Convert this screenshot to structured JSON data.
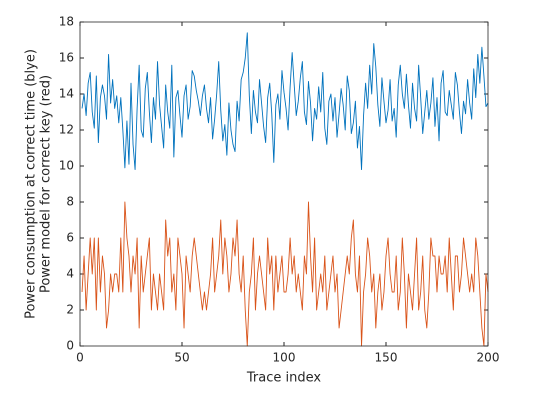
{
  "chart_data": {
    "type": "line",
    "xlabel": "Trace index",
    "ylabel": [
      "Power consumption at correct time (blye)",
      "Power model for correct key (red)"
    ],
    "xlim": [
      0,
      200
    ],
    "xticks": [
      0,
      50,
      100,
      150,
      200
    ],
    "ylim": [
      0,
      18
    ],
    "yticks": [
      0,
      2,
      4,
      6,
      8,
      10,
      12,
      14,
      16,
      18
    ],
    "x": [
      1,
      2,
      3,
      4,
      5,
      6,
      7,
      8,
      9,
      10,
      11,
      12,
      13,
      14,
      15,
      16,
      17,
      18,
      19,
      20,
      21,
      22,
      23,
      24,
      25,
      26,
      27,
      28,
      29,
      30,
      31,
      32,
      33,
      34,
      35,
      36,
      37,
      38,
      39,
      40,
      41,
      42,
      43,
      44,
      45,
      46,
      47,
      48,
      49,
      50,
      51,
      52,
      53,
      54,
      55,
      56,
      57,
      58,
      59,
      60,
      61,
      62,
      63,
      64,
      65,
      66,
      67,
      68,
      69,
      70,
      71,
      72,
      73,
      74,
      75,
      76,
      77,
      78,
      79,
      80,
      81,
      82,
      83,
      84,
      85,
      86,
      87,
      88,
      89,
      90,
      91,
      92,
      93,
      94,
      95,
      96,
      97,
      98,
      99,
      100,
      101,
      102,
      103,
      104,
      105,
      106,
      107,
      108,
      109,
      110,
      111,
      112,
      113,
      114,
      115,
      116,
      117,
      118,
      119,
      120,
      121,
      122,
      123,
      124,
      125,
      126,
      127,
      128,
      129,
      130,
      131,
      132,
      133,
      134,
      135,
      136,
      137,
      138,
      139,
      140,
      141,
      142,
      143,
      144,
      145,
      146,
      147,
      148,
      149,
      150,
      151,
      152,
      153,
      154,
      155,
      156,
      157,
      158,
      159,
      160,
      161,
      162,
      163,
      164,
      165,
      166,
      167,
      168,
      169,
      170,
      171,
      172,
      173,
      174,
      175,
      176,
      177,
      178,
      179,
      180,
      181,
      182,
      183,
      184,
      185,
      186,
      187,
      188,
      189,
      190,
      191,
      192,
      193,
      194,
      195,
      196,
      197,
      198,
      199,
      200
    ],
    "series": [
      {
        "color": "#0072bd",
        "values": [
          13.2,
          14.0,
          12.8,
          14.6,
          15.2,
          13.0,
          12.1,
          15.0,
          11.3,
          13.8,
          14.5,
          13.9,
          12.6,
          16.2,
          13.5,
          14.8,
          13.2,
          13.9,
          12.4,
          13.8,
          12.0,
          9.9,
          12.5,
          10.1,
          14.6,
          11.2,
          9.8,
          13.2,
          15.6,
          12.0,
          11.6,
          14.3,
          15.2,
          13.0,
          11.3,
          13.8,
          12.6,
          15.8,
          13.4,
          12.2,
          11.0,
          14.5,
          13.0,
          12.1,
          15.6,
          10.5,
          13.8,
          14.2,
          12.8,
          11.6,
          13.9,
          14.5,
          12.6,
          13.3,
          15.3,
          15.0,
          14.2,
          13.6,
          12.8,
          13.9,
          14.5,
          13.2,
          12.4,
          13.8,
          11.5,
          12.6,
          14.0,
          15.8,
          13.1,
          11.4,
          12.3,
          10.6,
          13.5,
          12.0,
          11.2,
          10.8,
          13.6,
          12.5,
          14.8,
          15.2,
          16.0,
          17.4,
          13.9,
          11.8,
          14.2,
          13.0,
          12.4,
          14.8,
          13.5,
          12.2,
          11.3,
          13.8,
          14.6,
          12.9,
          10.2,
          13.4,
          14.0,
          12.6,
          15.3,
          14.1,
          13.2,
          12.0,
          14.4,
          16.3,
          14.5,
          12.8,
          13.6,
          14.9,
          15.8,
          13.0,
          12.3,
          14.7,
          13.5,
          11.4,
          13.2,
          12.6,
          14.4,
          13.0,
          15.2,
          12.1,
          11.2,
          13.6,
          14.0,
          12.5,
          13.8,
          11.6,
          12.9,
          14.3,
          13.4,
          12.0,
          15.0,
          14.2,
          11.8,
          12.4,
          13.6,
          11.0,
          12.2,
          9.8,
          12.8,
          14.6,
          13.2,
          15.6,
          14.0,
          16.8,
          15.5,
          13.4,
          12.2,
          14.9,
          13.6,
          12.4,
          13.1,
          14.8,
          12.5,
          13.2,
          11.6,
          14.5,
          15.6,
          14.0,
          13.2,
          15.1,
          13.4,
          12.1,
          14.6,
          13.2,
          12.5,
          15.6,
          13.8,
          11.8,
          13.0,
          14.2,
          12.6,
          13.5,
          14.9,
          12.2,
          13.8,
          11.4,
          14.6,
          15.3,
          13.0,
          12.8,
          14.2,
          13.4,
          12.6,
          15.2,
          14.5,
          13.0,
          11.8,
          13.6,
          12.9,
          14.8,
          13.5,
          12.6,
          15.4,
          13.8,
          16.2,
          14.6,
          16.6,
          15.0,
          13.3,
          13.5
        ]
      },
      {
        "color": "#d95319",
        "values": [
          3,
          5,
          2,
          4,
          6,
          4,
          6,
          2,
          6,
          3,
          5,
          4,
          1,
          2,
          4,
          3,
          4,
          4,
          3,
          6,
          3,
          8,
          6,
          5,
          3,
          5,
          4,
          6,
          1,
          5,
          3,
          4,
          5,
          6,
          2,
          4,
          3,
          2,
          4,
          3,
          2,
          7,
          5,
          6,
          3,
          4,
          2,
          6,
          5,
          4,
          1,
          5,
          4,
          3,
          5,
          6,
          5,
          4,
          3,
          2,
          3,
          2,
          3,
          4,
          6,
          3,
          4,
          5,
          7,
          4,
          6,
          5,
          3,
          4,
          6,
          5,
          7,
          4,
          3,
          5,
          2,
          0,
          3,
          4,
          6,
          2,
          4,
          5,
          4,
          3,
          2,
          6,
          4,
          5,
          2,
          5,
          3,
          4,
          5,
          3,
          3,
          4,
          6,
          4,
          5,
          3,
          4,
          3,
          2,
          5,
          4,
          8,
          5,
          3,
          6,
          2,
          3,
          4,
          3,
          5,
          2,
          3,
          4,
          5,
          3,
          4,
          1,
          2,
          3,
          4,
          5,
          4,
          6,
          7,
          4,
          3,
          5,
          0,
          3,
          4,
          6,
          5,
          3,
          4,
          1,
          3,
          4,
          2,
          3,
          5,
          6,
          4,
          3,
          3,
          5,
          2,
          3,
          6,
          4,
          1,
          4,
          3,
          2,
          4,
          6,
          2,
          3,
          5,
          2,
          1,
          3,
          6,
          5,
          5,
          3,
          5,
          4,
          4,
          5,
          3,
          6,
          4,
          2,
          5,
          5,
          3,
          4,
          6,
          5,
          4,
          3,
          4,
          3,
          6,
          5,
          3,
          1,
          0,
          4,
          3
        ]
      }
    ]
  }
}
